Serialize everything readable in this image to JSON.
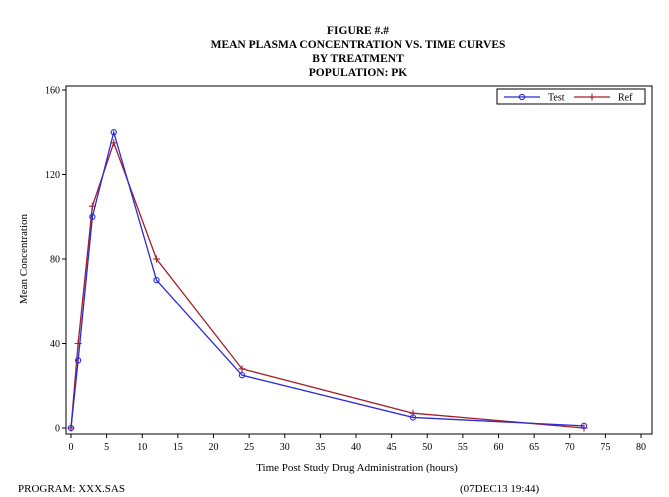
{
  "chart_data": {
    "type": "line",
    "title_lines": [
      "FIGURE #.#",
      "MEAN PLASMA CONCENTRATION VS. TIME CURVES",
      "BY TREATMENT",
      "POPULATION:  PK"
    ],
    "xlabel": "Time Post Study Drug Administration (hours)",
    "ylabel": "Mean Concentration",
    "xlim": [
      0,
      80
    ],
    "ylim": [
      0,
      160
    ],
    "xticks": [
      0,
      5,
      10,
      15,
      20,
      25,
      30,
      35,
      40,
      45,
      50,
      55,
      60,
      65,
      70,
      75,
      80
    ],
    "yticks": [
      0,
      40,
      80,
      120,
      160
    ],
    "legend_position": "top-right",
    "grid": false,
    "series": [
      {
        "name": "Test",
        "color": "#2b2bd6",
        "marker": "circle",
        "x": [
          0,
          1,
          3,
          6,
          12,
          24,
          48,
          72
        ],
        "y": [
          0,
          32,
          100,
          140,
          70,
          25,
          5,
          1
        ]
      },
      {
        "name": "Ref",
        "color": "#a31f2a",
        "marker": "plus",
        "x": [
          0,
          1,
          3,
          6,
          12,
          24,
          48,
          72
        ],
        "y": [
          0,
          40,
          105,
          135,
          80,
          28,
          7,
          0
        ]
      }
    ]
  },
  "footer": {
    "program": "PROGRAM: XXX.SAS",
    "timestamp": "(07DEC13 19:44)"
  }
}
